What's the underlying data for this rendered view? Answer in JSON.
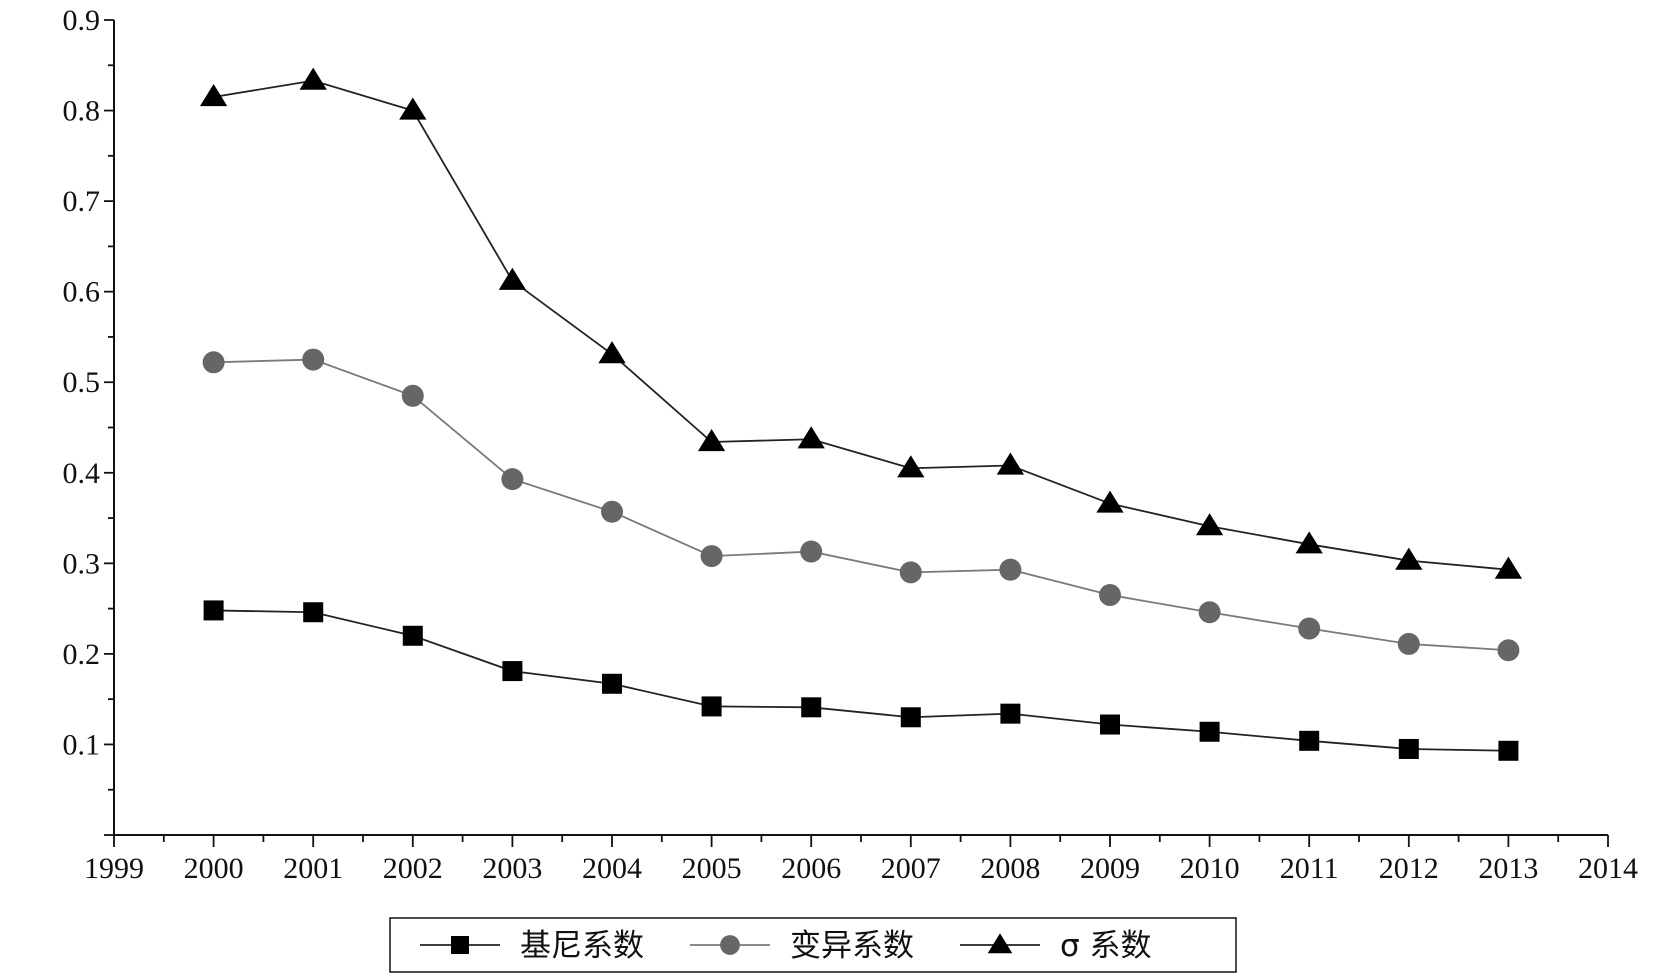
{
  "chart_data": {
    "type": "line",
    "title": "",
    "xlabel": "",
    "ylabel": "",
    "xlim": [
      1999,
      2014
    ],
    "ylim": [
      0.0,
      0.9
    ],
    "x_ticks": [
      "1999",
      "2000",
      "2001",
      "2002",
      "2003",
      "2004",
      "2005",
      "2006",
      "2007",
      "2008",
      "2009",
      "2010",
      "2011",
      "2012",
      "2013",
      "2014"
    ],
    "y_ticks": [
      "0.1",
      "0.2",
      "0.3",
      "0.4",
      "0.5",
      "0.6",
      "0.7",
      "0.8",
      "0.9"
    ],
    "grid": false,
    "legend_position": "bottom",
    "x": [
      2000,
      2001,
      2002,
      2003,
      2004,
      2005,
      2006,
      2007,
      2008,
      2009,
      2010,
      2011,
      2012,
      2013
    ],
    "series": [
      {
        "name": "基尼系数",
        "marker": "square",
        "color": "#000000",
        "line_color": "#222222",
        "values": [
          0.248,
          0.246,
          0.22,
          0.181,
          0.167,
          0.142,
          0.141,
          0.13,
          0.134,
          0.122,
          0.114,
          0.104,
          0.095,
          0.093
        ]
      },
      {
        "name": "变异系数",
        "marker": "circle",
        "color": "#666666",
        "line_color": "#7a7a7a",
        "values": [
          0.522,
          0.525,
          0.485,
          0.393,
          0.357,
          0.308,
          0.313,
          0.29,
          0.293,
          0.265,
          0.246,
          0.228,
          0.211,
          0.204
        ]
      },
      {
        "name": "σ 系数",
        "marker": "triangle",
        "color": "#000000",
        "line_color": "#222222",
        "values": [
          0.815,
          0.833,
          0.8,
          0.612,
          0.531,
          0.434,
          0.437,
          0.405,
          0.408,
          0.366,
          0.341,
          0.321,
          0.303,
          0.293
        ]
      }
    ]
  }
}
